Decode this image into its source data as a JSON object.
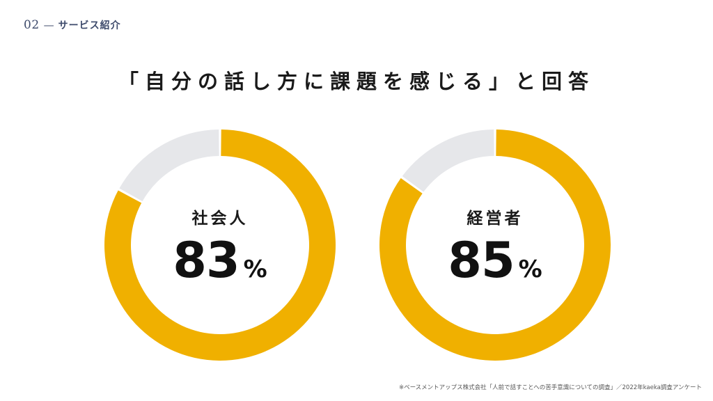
{
  "header": {
    "section_number": "02",
    "separator": "—",
    "section_name": "サービス紹介"
  },
  "title": "「自分の話し方に課題を感じる」と回答",
  "chart_data": [
    {
      "type": "pie",
      "label": "社会人",
      "value": 83,
      "unit": "%",
      "total": 100,
      "colors": {
        "filled": "#f0b000",
        "remainder": "#e6e7ea"
      }
    },
    {
      "type": "pie",
      "label": "経営者",
      "value": 85,
      "unit": "%",
      "total": 100,
      "colors": {
        "filled": "#f0b000",
        "remainder": "#e6e7ea"
      }
    }
  ],
  "source": "※ベースメントアップス株式会社「人前で話すことへの苦手意識についての調査」／2022年kaeka調査アンケート"
}
